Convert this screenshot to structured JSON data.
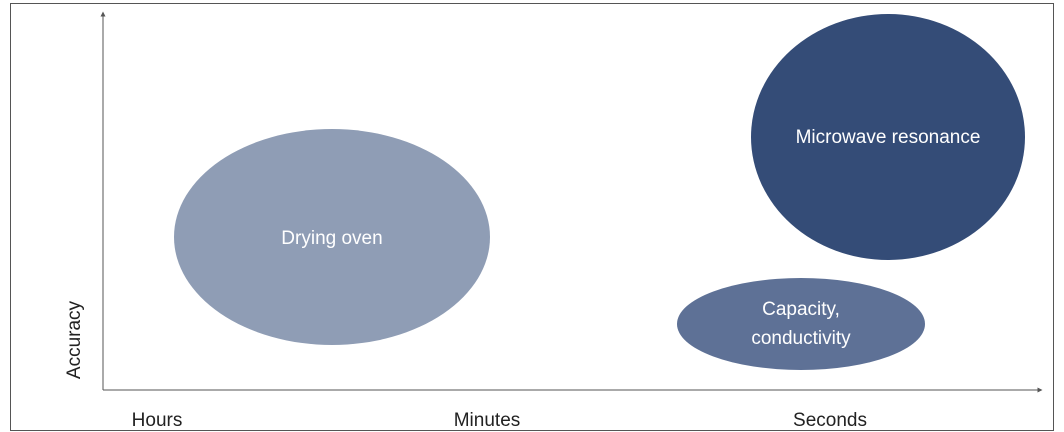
{
  "diagram": {
    "y_axis_label": "Accuracy",
    "x_axis_ticks": [
      "Hours",
      "Minutes",
      "Seconds"
    ],
    "methods": [
      {
        "name": "Drying oven",
        "lines": [
          "Drying oven"
        ],
        "color": "#8f9db5"
      },
      {
        "name": "Capacity, conductivity",
        "lines": [
          "Capacity,",
          "conductivity"
        ],
        "color": "#5e7196"
      },
      {
        "name": "Microwave resonance",
        "lines": [
          "Microwave resonance"
        ],
        "color": "#344c77"
      }
    ],
    "colors": {
      "frame": "#555555",
      "axis": "#555555",
      "text": "#222222"
    }
  }
}
